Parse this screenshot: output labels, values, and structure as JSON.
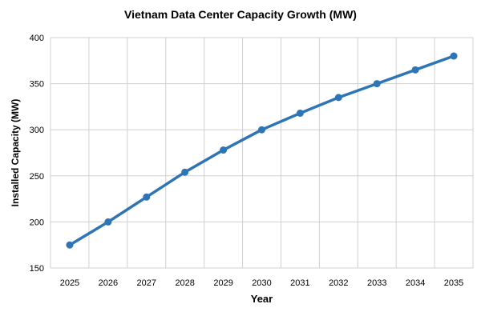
{
  "chart_data": {
    "type": "line",
    "title": "Vietnam Data Center Capacity Growth (MW)",
    "xlabel": "Year",
    "ylabel": "Installed Capacity (MW)",
    "categories": [
      "2025",
      "2026",
      "2027",
      "2028",
      "2029",
      "2030",
      "2031",
      "2032",
      "2033",
      "2034",
      "2035"
    ],
    "series": [
      {
        "values": [
          175,
          200,
          227,
          254,
          278,
          300,
          318,
          335,
          350,
          365,
          380
        ],
        "color": "#2e75b6"
      }
    ],
    "ylim": [
      150,
      400
    ],
    "yticks": [
      150,
      200,
      250,
      300,
      350,
      400
    ],
    "grid": true,
    "legend": "none"
  }
}
